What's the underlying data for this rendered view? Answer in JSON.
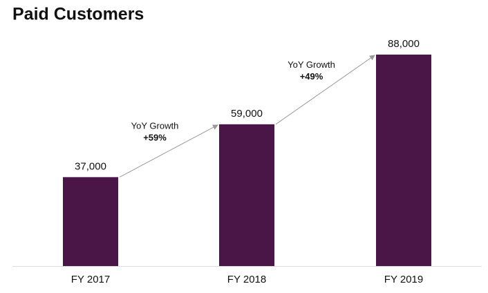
{
  "chart_data": {
    "type": "bar",
    "title": "Paid Customers",
    "categories": [
      "FY 2017",
      "FY 2018",
      "FY 2019"
    ],
    "values": [
      37000,
      59000,
      88000
    ],
    "value_labels": [
      "37,000",
      "59,000",
      "88,000"
    ],
    "color": "#4a1547",
    "annotations": [
      {
        "text": "YoY Growth",
        "value": "+59%"
      },
      {
        "text": "YoY Growth",
        "value": "+49%"
      }
    ]
  }
}
